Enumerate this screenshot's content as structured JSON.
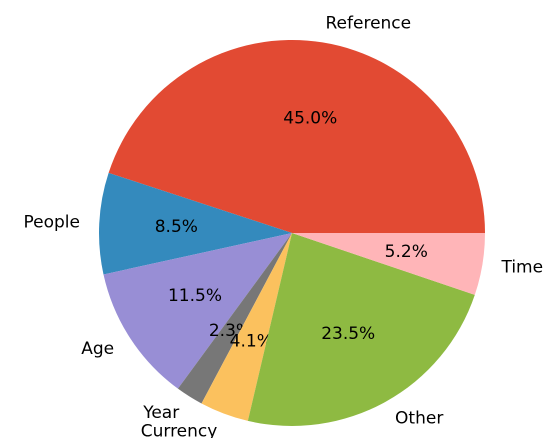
{
  "chart_data": {
    "type": "pie",
    "categories": [
      "Reference",
      "People",
      "Age",
      "Year",
      "Currency",
      "Other",
      "Time"
    ],
    "values": [
      45.0,
      8.5,
      11.5,
      2.3,
      4.1,
      23.5,
      5.2
    ],
    "value_labels": [
      "45.0%",
      "8.5%",
      "11.5%",
      "2.3%",
      "4.1%",
      "23.5%",
      "5.2%"
    ],
    "colors": [
      "#E24A33",
      "#348ABD",
      "#988ED5",
      "#777777",
      "#FBC15E",
      "#8EBA42",
      "#FFB5B8"
    ]
  }
}
